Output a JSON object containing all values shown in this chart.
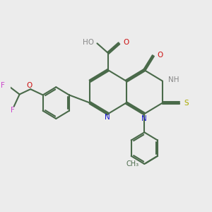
{
  "bg_color": "#ececec",
  "bond_color": "#4a6a4a",
  "n_color": "#1515cc",
  "o_color": "#cc1010",
  "s_color": "#aaaa00",
  "f_color": "#cc44cc",
  "h_color": "#888888",
  "lw": 1.5,
  "fs": 7.5,
  "dbg": 0.05,
  "figsize": [
    3.0,
    3.0
  ],
  "dpi": 100,
  "xlim": [
    0,
    10
  ],
  "ylim": [
    0,
    10
  ]
}
